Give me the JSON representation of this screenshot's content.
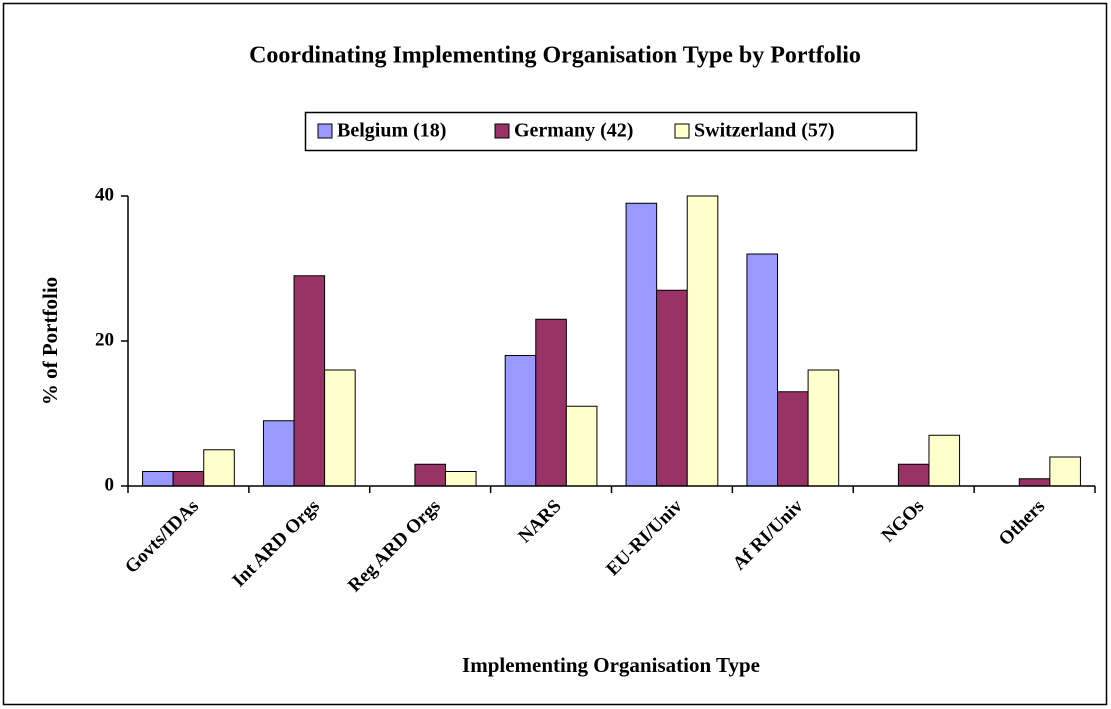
{
  "chart_data": {
    "type": "bar",
    "title": "Coordinating Implementing Organisation Type by Portfolio",
    "x_label": "Implementing Organisation Type",
    "y_label": "%  of  Portfolio",
    "categories": [
      "Govts/IDAs",
      "Int ARD Orgs",
      "Reg ARD Orgs",
      "NARS",
      "EU-RI/Univ",
      "Af RI/Univ",
      "NGOs",
      "Others"
    ],
    "series": [
      {
        "name": "Belgium (18)",
        "color": "#9999ff",
        "values": [
          2,
          9,
          0,
          18,
          39,
          32,
          0,
          0
        ]
      },
      {
        "name": "Germany (42)",
        "color": "#993366",
        "values": [
          2,
          29,
          3,
          23,
          27,
          13,
          3,
          1
        ]
      },
      {
        "name": "Switzerland (57)",
        "color": "#ffffcc",
        "values": [
          5,
          16,
          2,
          11,
          40,
          16,
          7,
          4
        ]
      }
    ],
    "ylim": [
      0,
      40
    ],
    "yticks": [
      0,
      20,
      40
    ],
    "grid": false,
    "legend": "top"
  }
}
